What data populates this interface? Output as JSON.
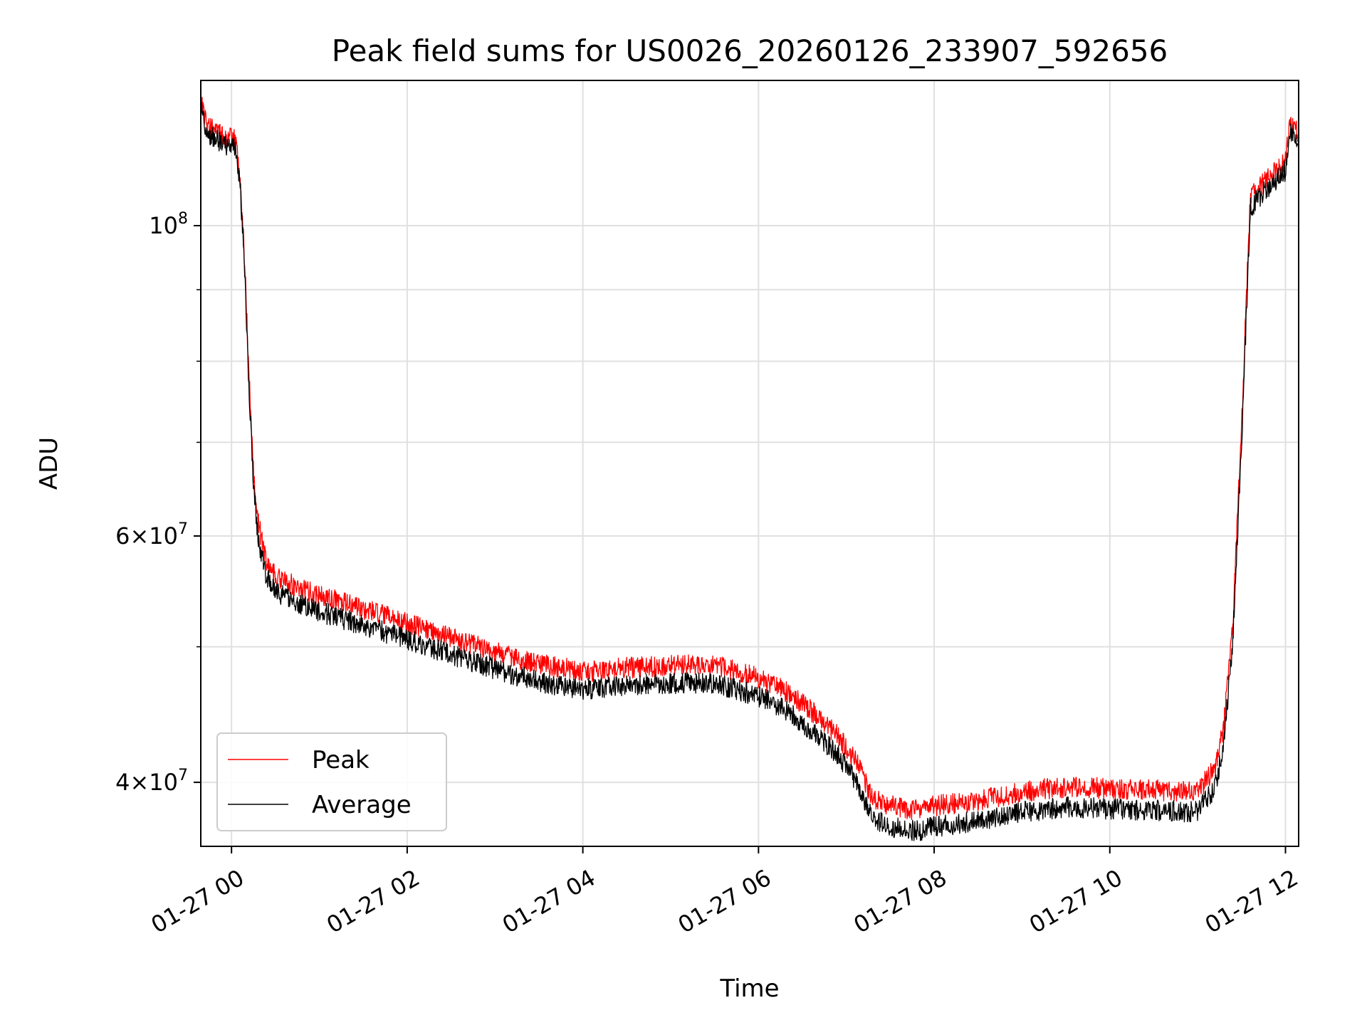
{
  "chart_data": {
    "type": "line",
    "title": "Peak field sums for US0026_20260126_233907_592656",
    "xlabel": "Time",
    "ylabel": "ADU",
    "xlim_hours": [
      -0.35,
      12.15
    ],
    "ylim": [
      36000000,
      127000000
    ],
    "yscale": "log",
    "grid": true,
    "legend_position": "lower-left",
    "x_ticks": [
      {
        "label": "01-27 00",
        "hour": 0
      },
      {
        "label": "01-27 02",
        "hour": 2
      },
      {
        "label": "01-27 04",
        "hour": 4
      },
      {
        "label": "01-27 06",
        "hour": 6
      },
      {
        "label": "01-27 08",
        "hour": 8
      },
      {
        "label": "01-27 10",
        "hour": 10
      },
      {
        "label": "01-27 12",
        "hour": 12
      }
    ],
    "y_ticks": [
      {
        "base": "4",
        "exp": "7",
        "value": 40000000
      },
      {
        "base": "6",
        "exp": "7",
        "value": 60000000
      },
      {
        "base": "",
        "exp": "8",
        "value": 100000000
      }
    ],
    "y_minor_grid": [
      50000000,
      70000000,
      80000000,
      90000000
    ],
    "series": [
      {
        "name": "Peak",
        "color": "#ff0000",
        "noise": 0.035,
        "x": [
          -0.35,
          -0.3,
          -0.25,
          -0.1,
          0.05,
          0.1,
          0.15,
          0.2,
          0.25,
          0.3,
          0.4,
          0.5,
          0.6,
          0.8,
          1.0,
          1.5,
          2.0,
          2.5,
          3.0,
          3.5,
          4.0,
          4.5,
          5.0,
          5.5,
          6.0,
          6.3,
          6.6,
          6.9,
          7.1,
          7.3,
          7.5,
          7.8,
          8.0,
          8.5,
          9.0,
          9.5,
          10.0,
          10.5,
          11.0,
          11.2,
          11.3,
          11.4,
          11.5,
          11.6,
          11.8,
          12.0,
          12.05,
          12.1,
          12.15
        ],
        "y": [
          123500000,
          119500000,
          117500000,
          116000000,
          115000000,
          108000000,
          94000000,
          78000000,
          67000000,
          61500000,
          57500000,
          56200000,
          55700000,
          55000000,
          54400000,
          53200000,
          52000000,
          50800000,
          49600000,
          48600000,
          48000000,
          48300000,
          48500000,
          48500000,
          47500000,
          46500000,
          45000000,
          43200000,
          41500000,
          39000000,
          38500000,
          38200000,
          38500000,
          38800000,
          39400000,
          39700000,
          39600000,
          39500000,
          39400000,
          41000000,
          44000000,
          52000000,
          72000000,
          105000000,
          108000000,
          111000000,
          118000000,
          117500000,
          116000000
        ]
      },
      {
        "name": "Average",
        "color": "#000000",
        "noise": 0.035,
        "x": [
          -0.35,
          -0.3,
          -0.25,
          -0.1,
          0.05,
          0.1,
          0.15,
          0.2,
          0.25,
          0.3,
          0.4,
          0.5,
          0.6,
          0.8,
          1.0,
          1.5,
          2.0,
          2.5,
          3.0,
          3.5,
          4.0,
          4.5,
          5.0,
          5.5,
          6.0,
          6.3,
          6.6,
          6.9,
          7.1,
          7.3,
          7.5,
          7.8,
          8.0,
          8.5,
          9.0,
          9.5,
          10.0,
          10.5,
          11.0,
          11.2,
          11.3,
          11.4,
          11.5,
          11.6,
          11.8,
          12.0,
          12.05,
          12.1,
          12.15
        ],
        "y": [
          121500000,
          118000000,
          116000000,
          114500000,
          113500000,
          106500000,
          92500000,
          76500000,
          65500000,
          60000000,
          56000000,
          54800000,
          54300000,
          53600000,
          53000000,
          51800000,
          50600000,
          49400000,
          48200000,
          47200000,
          46600000,
          46900000,
          47100000,
          47100000,
          46100000,
          45100000,
          43600000,
          41900000,
          40200000,
          37700000,
          37200000,
          36900000,
          37200000,
          37500000,
          38100000,
          38400000,
          38300000,
          38200000,
          38100000,
          39700000,
          42700000,
          50500000,
          70000000,
          103000000,
          106500000,
          109500000,
          116500000,
          116000000,
          114500000
        ]
      }
    ]
  }
}
